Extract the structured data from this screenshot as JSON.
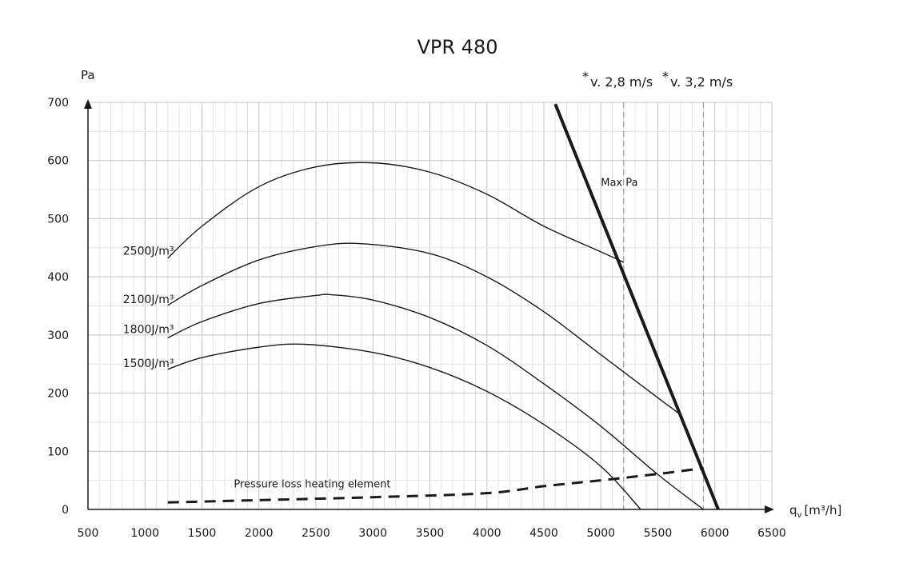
{
  "chart_data": {
    "type": "line",
    "title": "VPR 480",
    "xlabel_main": "q",
    "xlabel_sub": "v",
    "xlabel_unit": "[m³/h]",
    "ylabel": "Pa",
    "xlim": [
      500,
      6500
    ],
    "ylim": [
      0,
      700
    ],
    "x_ticks": [
      500,
      1000,
      1500,
      2000,
      2500,
      3000,
      3500,
      4000,
      4500,
      5000,
      5500,
      6000,
      6500
    ],
    "y_ticks": [
      0,
      100,
      200,
      300,
      400,
      500,
      600,
      700
    ],
    "x_tick_labels": [
      "500",
      "1000",
      "1500",
      "2000",
      "2500",
      "3000",
      "3500",
      "4000",
      "4500",
      "5000",
      "5500",
      "6000",
      "6500"
    ],
    "y_tick_labels": [
      "0",
      "100",
      "200",
      "300",
      "400",
      "500",
      "600",
      "700"
    ],
    "grid": true,
    "series": [
      {
        "name": "2500J/m³",
        "style": "solid",
        "x": [
          1200,
          1500,
          2000,
          2500,
          3000,
          3500,
          4000,
          4500,
          5000,
          5200
        ],
        "y": [
          432,
          487,
          555,
          589,
          596,
          580,
          542,
          487,
          443,
          425
        ]
      },
      {
        "name": "2100J/m³",
        "style": "solid",
        "x": [
          1200,
          1500,
          2000,
          2500,
          2900,
          3500,
          4000,
          4500,
          5000,
          5500,
          5700
        ],
        "y": [
          351,
          385,
          429,
          452,
          457,
          440,
          400,
          340,
          266,
          192,
          163
        ]
      },
      {
        "name": "1800J/m³",
        "style": "solid",
        "x": [
          1200,
          1500,
          2000,
          2500,
          2650,
          3000,
          3500,
          4000,
          4500,
          5000,
          5500,
          5900
        ],
        "y": [
          295,
          323,
          354,
          368,
          369,
          360,
          330,
          282,
          216,
          143,
          60,
          0
        ]
      },
      {
        "name": "1500J/m³",
        "style": "solid",
        "x": [
          1200,
          1500,
          2000,
          2400,
          3000,
          3500,
          4000,
          4500,
          5000,
          5350
        ],
        "y": [
          241,
          261,
          279,
          284,
          270,
          244,
          203,
          146,
          74,
          0
        ]
      },
      {
        "name": "Max Pa",
        "style": "bold",
        "x": [
          4600,
          6030
        ],
        "y": [
          697,
          0
        ]
      },
      {
        "name": "Pressure loss heating element",
        "style": "dashed",
        "x": [
          1200,
          2000,
          3000,
          4000,
          4500,
          5000,
          5500,
          5900
        ],
        "y": [
          12,
          16,
          21,
          28,
          40,
          50,
          61,
          71
        ]
      }
    ],
    "curve_labels": [
      {
        "text": "2500J/m³",
        "x": 1130,
        "y": 445
      },
      {
        "text": "2100J/m³",
        "x": 1130,
        "y": 362
      },
      {
        "text": "1800J/m³",
        "x": 1130,
        "y": 310
      },
      {
        "text": "1500J/m³",
        "x": 1130,
        "y": 252
      }
    ],
    "annotations": [
      {
        "text": "Max Pa",
        "x": 5000,
        "y": 563
      },
      {
        "text": "Pressure loss heating element",
        "x": 1780,
        "y": 45
      }
    ],
    "velocity_lines": [
      {
        "label": "v. 2,8 m/s",
        "x": 5200
      },
      {
        "label": "v. 3,2 m/s",
        "x": 5900
      }
    ],
    "velocity_marker": "*"
  }
}
